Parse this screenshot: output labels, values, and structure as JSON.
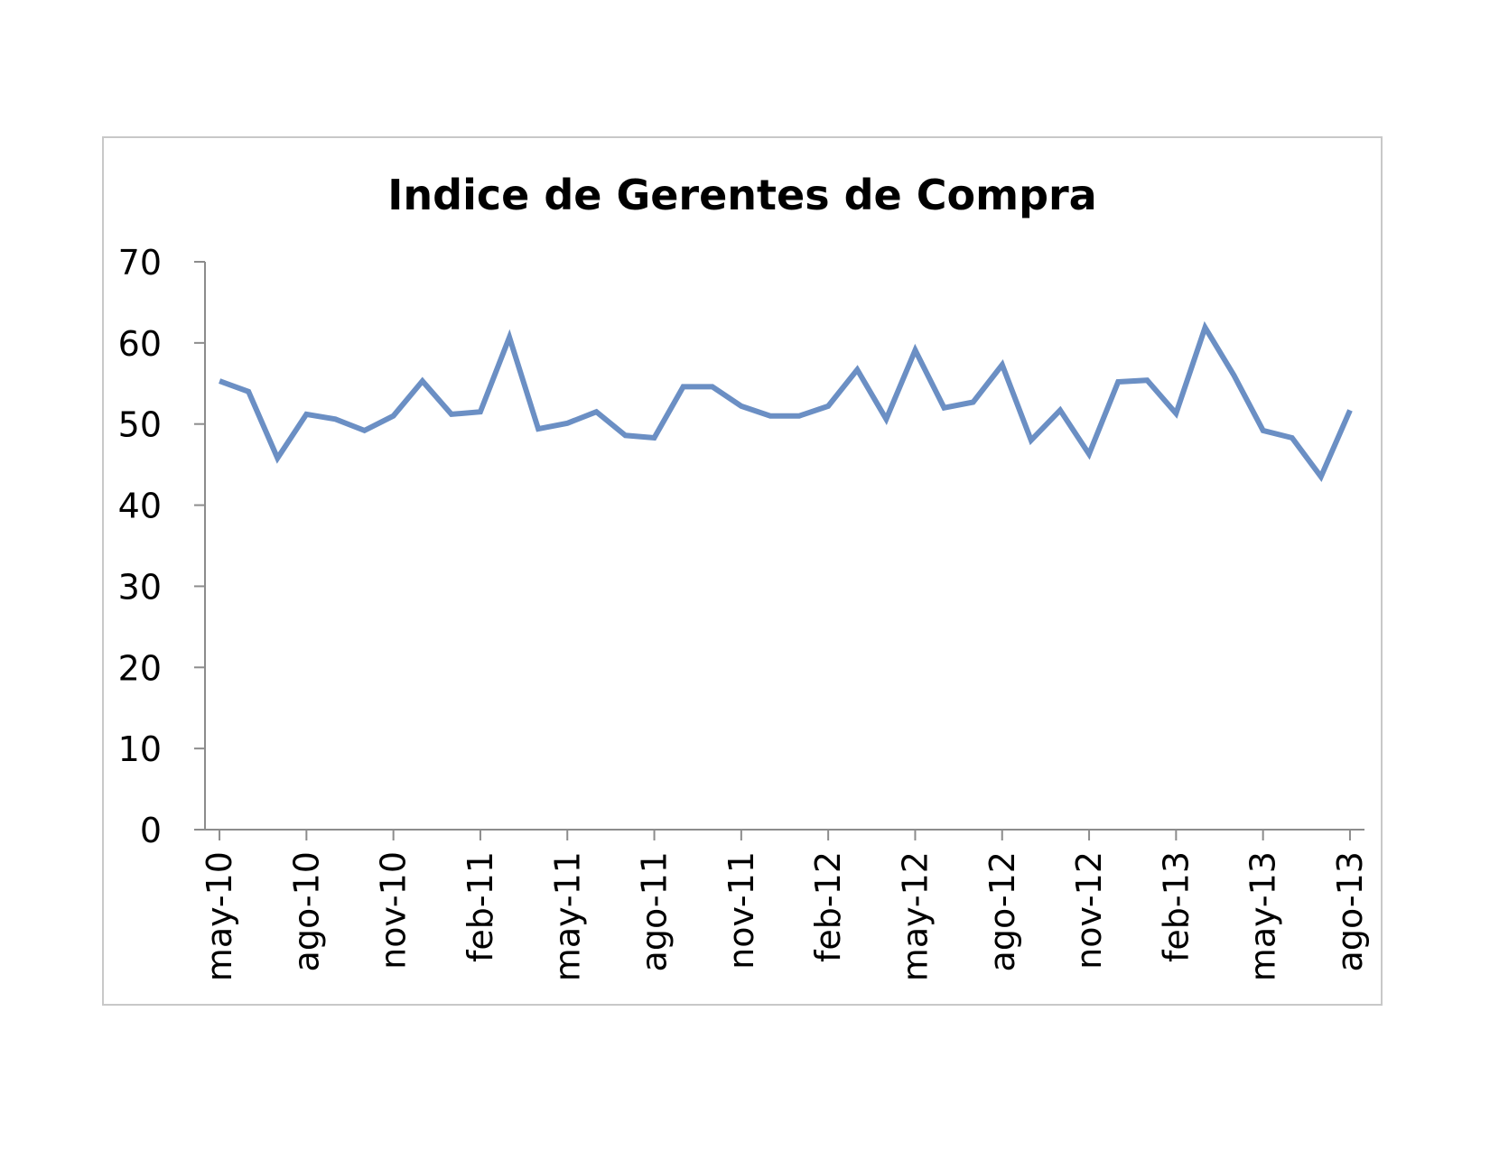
{
  "chart_data": {
    "type": "line",
    "title": "Indice de Gerentes de Compra",
    "xlabel": "",
    "ylabel": "",
    "ylim": [
      0,
      70
    ],
    "yticks": [
      0,
      10,
      20,
      30,
      40,
      50,
      60,
      70
    ],
    "tick_labels": [
      "may-10",
      "ago-10",
      "nov-10",
      "feb-11",
      "may-11",
      "ago-11",
      "nov-11",
      "feb-12",
      "may-12",
      "ago-12",
      "nov-12",
      "feb-13",
      "may-13",
      "ago-13"
    ],
    "grid": false,
    "legend": "none",
    "line_color": "#6b8fc4",
    "x": [
      "may-10",
      "jun-10",
      "jul-10",
      "ago-10",
      "sep-10",
      "oct-10",
      "nov-10",
      "dic-10",
      "ene-11",
      "feb-11",
      "mar-11",
      "abr-11",
      "may-11",
      "jun-11",
      "jul-11",
      "ago-11",
      "sep-11",
      "oct-11",
      "nov-11",
      "dic-11",
      "ene-12",
      "feb-12",
      "mar-12",
      "abr-12",
      "may-12",
      "jun-12",
      "jul-12",
      "ago-12",
      "sep-12",
      "oct-12",
      "nov-12",
      "dic-12",
      "ene-13",
      "feb-13",
      "mar-13",
      "abr-13",
      "may-13",
      "jun-13",
      "jul-13",
      "ago-13"
    ],
    "series": [
      {
        "values": [
          55.3,
          54.0,
          45.8,
          51.2,
          50.6,
          49.2,
          51.0,
          55.3,
          51.2,
          51.5,
          60.7,
          49.4,
          50.1,
          51.5,
          48.6,
          48.3,
          54.6,
          54.6,
          52.2,
          51.0,
          51.0,
          52.2,
          56.7,
          50.6,
          59.1,
          52.0,
          52.7,
          57.3,
          48.0,
          51.7,
          46.3,
          55.2,
          55.4,
          51.3,
          61.9,
          56.0,
          49.2,
          48.3,
          43.5,
          51.7
        ]
      }
    ]
  }
}
